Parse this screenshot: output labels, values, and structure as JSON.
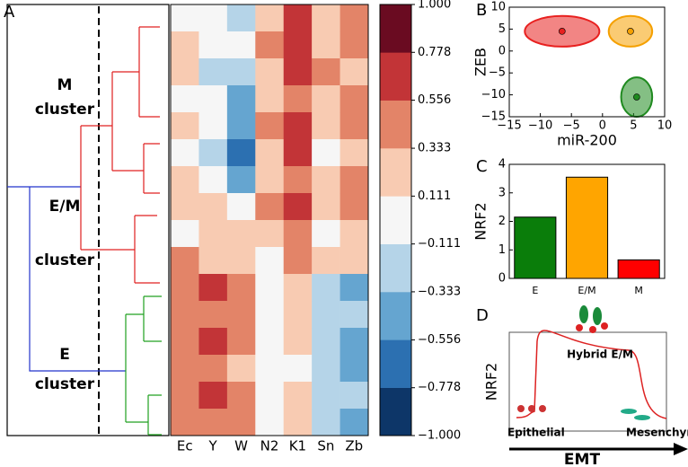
{
  "chart_data": [
    {
      "panel": "A",
      "type": "heatmap",
      "categories": [
        "Ec",
        "Y",
        "W",
        "N2",
        "K1",
        "Sn",
        "Zb"
      ],
      "annotations": [
        [
          "M",
          "cluster"
        ],
        [
          "E/M",
          "cluster"
        ],
        [
          "E",
          "cluster"
        ]
      ],
      "values": [
        [
          0.1,
          -0.1,
          -0.2,
          0.3,
          0.6,
          0.2,
          0.4
        ],
        [
          0.3,
          0.0,
          0.1,
          0.4,
          0.7,
          0.3,
          0.5
        ],
        [
          0.2,
          -0.2,
          -0.3,
          0.2,
          0.6,
          0.4,
          0.3
        ],
        [
          0.0,
          0.1,
          -0.5,
          0.3,
          0.5,
          0.2,
          0.4
        ],
        [
          0.3,
          0.0,
          -0.4,
          0.4,
          0.7,
          0.3,
          0.5
        ],
        [
          0.1,
          -0.2,
          -0.6,
          0.2,
          0.6,
          0.1,
          0.3
        ],
        [
          0.2,
          -0.1,
          -0.5,
          0.3,
          0.5,
          0.2,
          0.4
        ],
        [
          0.3,
          0.2,
          0.1,
          0.4,
          0.6,
          0.3,
          0.5
        ],
        [
          0.1,
          0.3,
          0.3,
          0.2,
          0.5,
          0.1,
          0.3
        ],
        [
          0.4,
          0.3,
          0.2,
          0.1,
          0.4,
          0.2,
          0.3
        ],
        [
          0.5,
          0.6,
          0.4,
          -0.1,
          0.2,
          -0.3,
          -0.4
        ],
        [
          0.4,
          0.5,
          0.5,
          0.0,
          0.3,
          -0.2,
          -0.3
        ],
        [
          0.5,
          0.6,
          0.4,
          0.1,
          0.2,
          -0.3,
          -0.5
        ],
        [
          0.4,
          0.5,
          0.3,
          -0.1,
          0.1,
          -0.2,
          -0.4
        ],
        [
          0.5,
          0.6,
          0.5,
          0.0,
          0.2,
          -0.3,
          -0.3
        ],
        [
          0.4,
          0.5,
          0.4,
          0.1,
          0.3,
          -0.2,
          -0.4
        ]
      ],
      "colorbar": {
        "lim": [
          -1,
          1
        ],
        "ticks": [
          {
            "value": 1,
            "label": "1.000"
          },
          {
            "value": 0.778,
            "label": "0.778"
          },
          {
            "value": 0.556,
            "label": "0.556"
          },
          {
            "value": 0.333,
            "label": "0.333"
          },
          {
            "value": 0.111,
            "label": "0.111"
          },
          {
            "value": -0.111,
            "label": "−0.111"
          },
          {
            "value": -0.333,
            "label": "−0.333"
          },
          {
            "value": -0.556,
            "label": "−0.556"
          },
          {
            "value": -0.778,
            "label": "−0.778"
          },
          {
            "value": -1,
            "label": "−1.000"
          }
        ],
        "colors": [
          "#0d3668",
          "#2c70b1",
          "#65a5d0",
          "#b5d4e8",
          "#f6f6f6",
          "#f8cbb2",
          "#e38468",
          "#c23437",
          "#6a0b21"
        ]
      }
    },
    {
      "panel": "B",
      "type": "scatter",
      "x_label": "miR-200",
      "y_label": "ZEB",
      "xlim": [
        -15,
        10
      ],
      "ylim": [
        -15,
        10
      ],
      "xticks": [
        {
          "value": -15,
          "label": "−15"
        },
        {
          "value": -10,
          "label": "−10"
        },
        {
          "value": -5,
          "label": "−5"
        },
        0,
        5,
        10
      ],
      "yticks": [
        {
          "value": -15,
          "label": "−15"
        },
        {
          "value": -10,
          "label": "−10"
        },
        {
          "value": -5,
          "label": "−5"
        },
        0,
        5,
        10
      ],
      "x": [
        -6.5,
        4.5,
        5.5
      ],
      "values": [
        4.5,
        4.5,
        -10.5
      ],
      "x_err": [
        6,
        3.5,
        2.5
      ],
      "y_err": [
        3.5,
        3.5,
        4.5
      ],
      "colors": [
        "#e8201f",
        "#f5a000",
        "#1f8a1f"
      ]
    },
    {
      "panel": "C",
      "type": "bar",
      "y_label": "NRF2",
      "categories": [
        "E",
        "E/M",
        "M"
      ],
      "values": [
        2.15,
        3.55,
        0.65
      ],
      "colors": [
        "#0a7d0a",
        "#ffa500",
        "#ff0000"
      ],
      "ylim": [
        0,
        4
      ],
      "yticks": [
        0,
        1,
        2,
        3,
        4
      ]
    }
  ],
  "diagram": {
    "label": "D",
    "y_label": "NRF2",
    "x_label": "EMT",
    "annotations": [
      "Hybrid E/M",
      "Epithelial",
      "Mesenchymal"
    ]
  }
}
